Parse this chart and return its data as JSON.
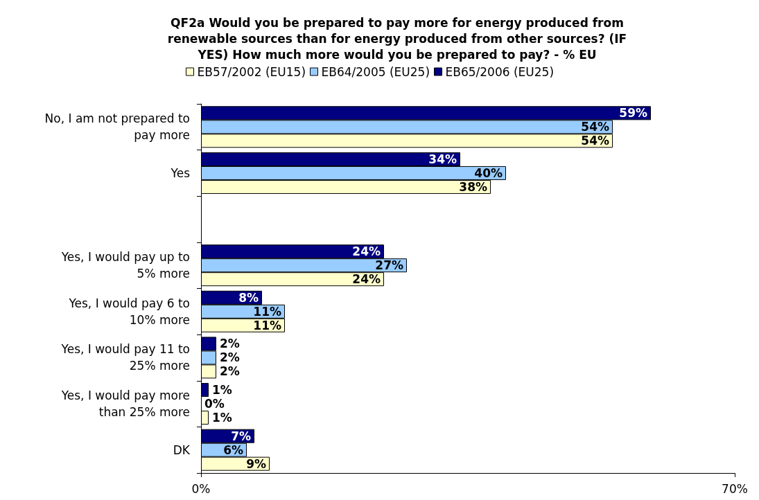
{
  "chart_data": {
    "type": "bar",
    "orientation": "horizontal",
    "title": "QF2a Would you be prepared to pay more for energy produced from\nrenewable sources than for energy produced from other sources? (IF\nYES) How much more would you be prepared to pay? - % EU",
    "categories": [
      "No, I am not prepared to pay more",
      "Yes",
      null,
      "Yes, I would pay up to 5% more",
      "Yes, I would pay 6 to 10% more",
      "Yes, I would pay 11 to 25% more",
      "Yes, I would pay more than 25% more",
      "DK"
    ],
    "series": [
      {
        "name": "EB57/2002 (EU15)",
        "color": "#ffffcc",
        "values": [
          54,
          38,
          null,
          24,
          11,
          2,
          1,
          9
        ],
        "value_labels": [
          "54%",
          "38%",
          null,
          "24%",
          "11%",
          "2%",
          "1%",
          "9%"
        ]
      },
      {
        "name": "EB64/2005 (EU25)",
        "color": "#99ccff",
        "values": [
          54,
          40,
          null,
          27,
          11,
          2,
          0,
          6
        ],
        "value_labels": [
          "54%",
          "40%",
          null,
          "27%",
          "11%",
          "2%",
          "0%",
          "6%"
        ]
      },
      {
        "name": "EB65/2006 (EU25)",
        "color": "#000080",
        "values": [
          59,
          34,
          null,
          24,
          8,
          2,
          1,
          7
        ],
        "value_labels": [
          "59%",
          "34%",
          null,
          "24%",
          "8%",
          "2%",
          "1%",
          "7%"
        ]
      }
    ],
    "xlim": [
      0,
      70
    ],
    "xticks": [
      {
        "value": 0,
        "label": "0%"
      },
      {
        "value": 70,
        "label": "70%"
      }
    ],
    "legend": "top",
    "grid": false
  }
}
